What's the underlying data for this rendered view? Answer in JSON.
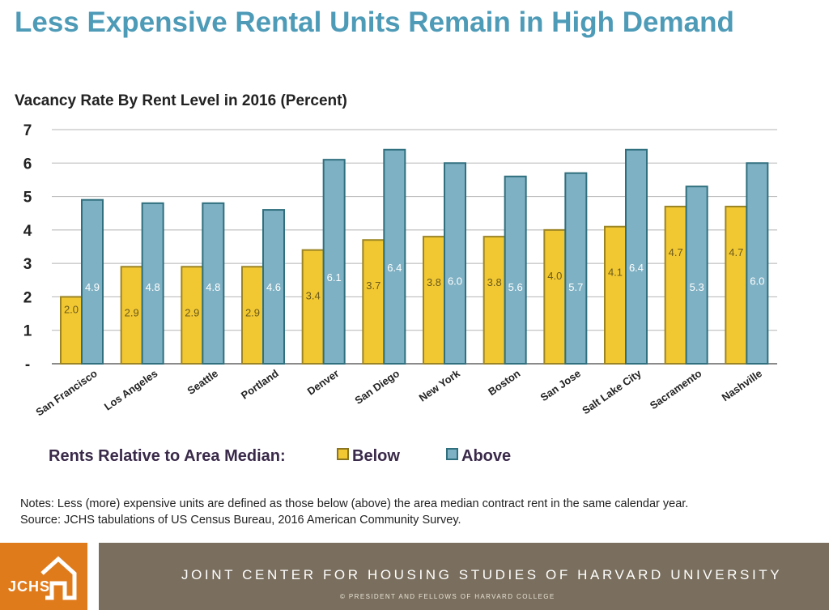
{
  "headline": "Less Expensive Rental Units Remain in High Demand",
  "chart_data": {
    "type": "bar",
    "title": "Vacancy Rate By Rent Level in 2016 (Percent)",
    "categories": [
      "San Francisco",
      "Los Angeles",
      "Seattle",
      "Portland",
      "Denver",
      "San Diego",
      "New York",
      "Boston",
      "San Jose",
      "Salt Lake City",
      "Sacramento",
      "Nashville"
    ],
    "series": [
      {
        "name": "Below",
        "color": "#f2c832",
        "label_color": "#6b5a1a",
        "values": [
          2.0,
          2.9,
          2.9,
          2.9,
          3.4,
          3.7,
          3.8,
          3.8,
          4.0,
          4.1,
          4.7,
          4.7
        ]
      },
      {
        "name": "Above",
        "color": "#7fb1c4",
        "label_color": "#ffffff",
        "values": [
          4.9,
          4.8,
          4.8,
          4.6,
          6.1,
          6.4,
          6.0,
          5.6,
          5.7,
          6.4,
          5.3,
          6.0
        ]
      }
    ],
    "y_ticks": [
      "-",
      "1",
      "2",
      "3",
      "4",
      "5",
      "6",
      "7"
    ],
    "ylim": [
      0,
      7
    ],
    "grid": true,
    "legend_title": "Rents Relative to Area Median:",
    "legend_placement": "bottom"
  },
  "notes": [
    "Notes: Less (more) expensive units are defined as those below (above) the area median contract rent in the same calendar year.",
    "Source: JCHS tabulations of US Census Bureau, 2016 American Community Survey."
  ],
  "footer": {
    "logo": "JCHS",
    "logo_icon": "house-icon",
    "title": "JOINT CENTER FOR HOUSING STUDIES OF HARVARD UNIVERSITY",
    "copyright": "© PRESIDENT AND FELLOWS OF HARVARD COLLEGE"
  }
}
